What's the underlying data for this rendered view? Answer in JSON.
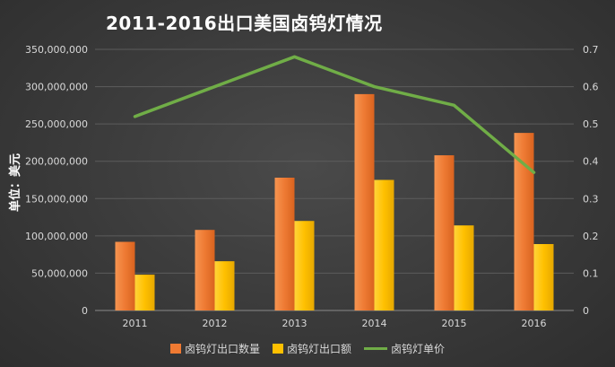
{
  "chart_data": {
    "type": "bar",
    "title": "2011-2016出口美国卤钨灯情况",
    "ylabel": "单位：美元",
    "categories": [
      "2011",
      "2012",
      "2013",
      "2014",
      "2015",
      "2016"
    ],
    "series": [
      {
        "name": "卤钨灯出口数量",
        "type": "bar",
        "axis": "left",
        "color": "#f07a32",
        "values": [
          92000000,
          108000000,
          178000000,
          290000000,
          208000000,
          238000000
        ]
      },
      {
        "name": "卤钨灯出口额",
        "type": "bar",
        "axis": "left",
        "color": "#ffc000",
        "values": [
          48000000,
          66000000,
          120000000,
          175000000,
          114000000,
          89000000
        ]
      },
      {
        "name": "卤钨灯单价",
        "type": "line",
        "axis": "right",
        "color": "#70ad47",
        "values": [
          0.52,
          0.6,
          0.68,
          0.6,
          0.55,
          0.37
        ]
      }
    ],
    "ylim_left": [
      0,
      350000000
    ],
    "ylim_right": [
      0,
      0.7
    ],
    "yticks_left": [
      "0",
      "50,000,000",
      "100,000,000",
      "150,000,000",
      "200,000,000",
      "250,000,000",
      "300,000,000",
      "350,000,000"
    ],
    "yticks_right": [
      "0",
      "0.1",
      "0.2",
      "0.3",
      "0.4",
      "0.5",
      "0.6",
      "0.7"
    ],
    "grid": true,
    "legend_position": "bottom"
  }
}
